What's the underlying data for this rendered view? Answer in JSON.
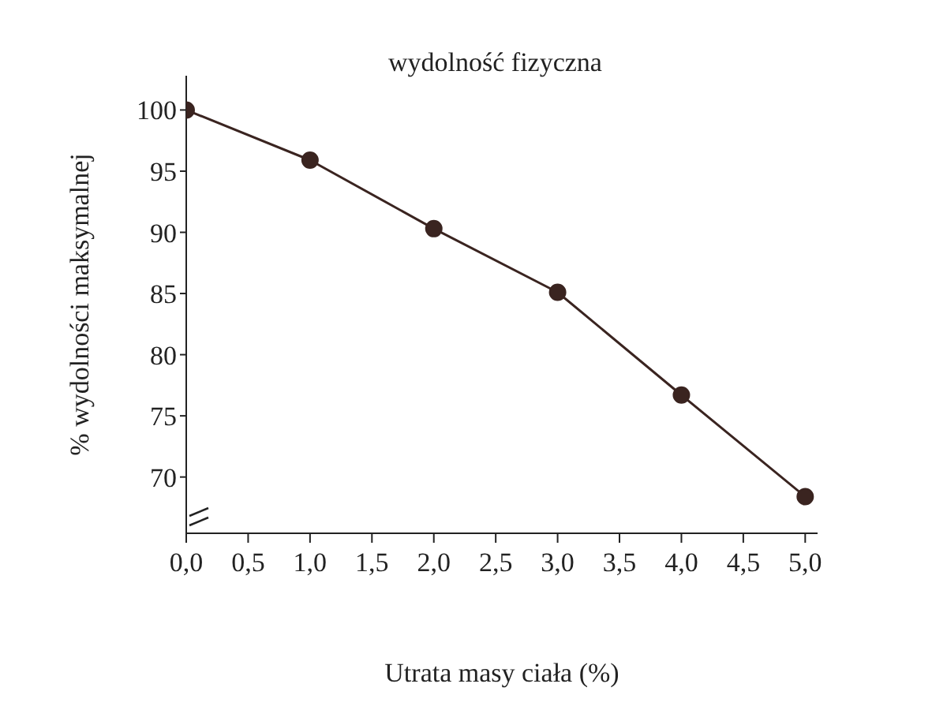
{
  "chart_data": {
    "type": "line",
    "title": "wydolność fizyczna",
    "xlabel": "Utrata masy ciała (%)",
    "ylabel": "% wydolności maksymalnej",
    "x": [
      0,
      1,
      2,
      3,
      4,
      5
    ],
    "series": [
      {
        "color": "#3a2420",
        "values": [
          100,
          95.9,
          90.3,
          85.1,
          76.7,
          68.4
        ]
      }
    ],
    "xlim": [
      0,
      5.1
    ],
    "xticks": [
      {
        "value": 0,
        "label": "0,0"
      },
      {
        "value": 0.5,
        "label": "0,5"
      },
      {
        "value": 1,
        "label": "1,0"
      },
      {
        "value": 1.5,
        "label": "1,5"
      },
      {
        "value": 2,
        "label": "2,0"
      },
      {
        "value": 2.5,
        "label": "2,5"
      },
      {
        "value": 3,
        "label": "3,0"
      },
      {
        "value": 3.5,
        "label": "3,5"
      },
      {
        "value": 4,
        "label": "4,0"
      },
      {
        "value": 4.5,
        "label": "4,5"
      },
      {
        "value": 5,
        "label": "5,0"
      }
    ],
    "ylim": [
      65.4,
      102.8
    ],
    "yticks": [
      70,
      75,
      80,
      85,
      90,
      95,
      100
    ],
    "grid": false,
    "legend": false,
    "marker": "circle",
    "line_style": "solid"
  }
}
